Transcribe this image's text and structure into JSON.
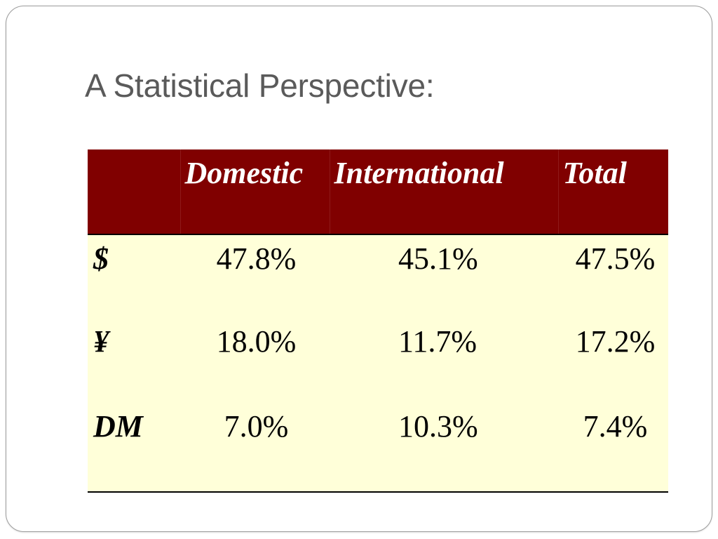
{
  "slide": {
    "title": "A Statistical Perspective:"
  },
  "table": {
    "headers": [
      "",
      "Domestic",
      "International",
      "Total"
    ],
    "rows": [
      {
        "label": "$",
        "domestic": "47.8%",
        "international": "45.1%",
        "total": "47.5%"
      },
      {
        "label": "¥",
        "domestic": "18.0%",
        "international": "11.7%",
        "total": "17.2%"
      },
      {
        "label": "DM",
        "domestic": "7.0%",
        "international": "10.3%",
        "total": "7.4%"
      }
    ]
  },
  "colors": {
    "header_bg": "#800000",
    "body_bg": "#ffffd9",
    "title_text": "#5a5a5a"
  }
}
